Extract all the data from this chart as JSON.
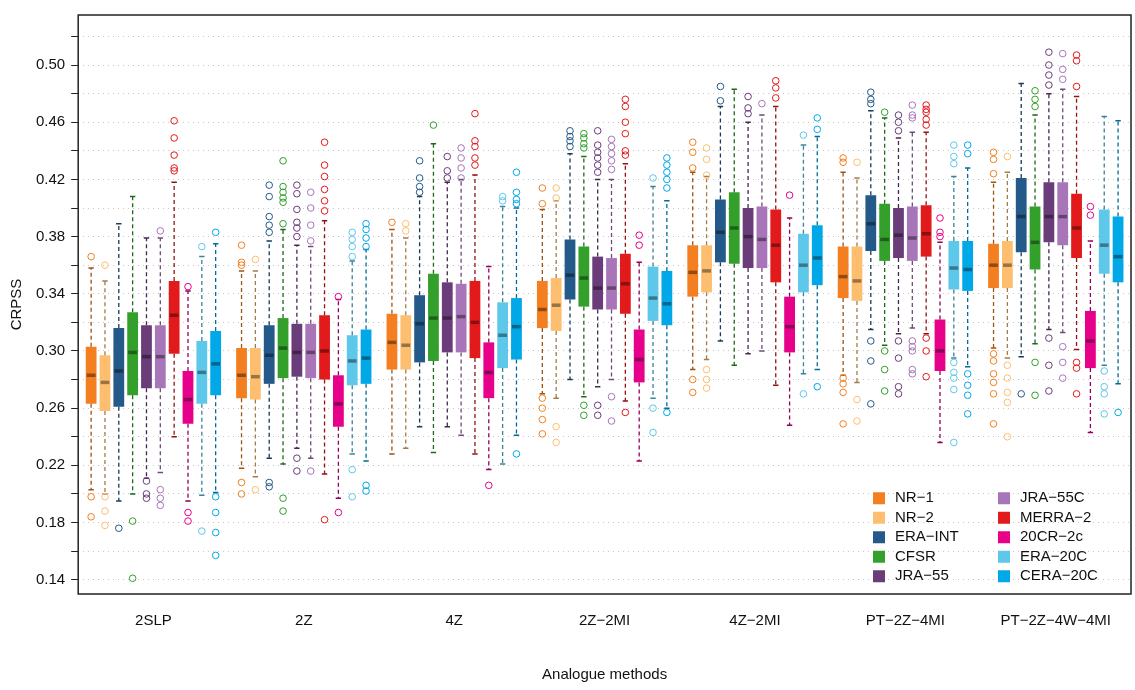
{
  "chart_data": {
    "type": "box",
    "xlabel": "Analogue methods",
    "ylabel": "CRPSS",
    "categories": [
      "2SLP",
      "2Z",
      "4Z",
      "2Z−2MI",
      "4Z−2MI",
      "PT−2Z−4MI",
      "PT−2Z−4W−4MI"
    ],
    "ylim": [
      0.13,
      0.535
    ],
    "yticks": [
      0.14,
      {
        "value": 0.16,
        "label": null
      },
      0.18,
      {
        "value": 0.2,
        "label": null
      },
      0.22,
      {
        "value": 0.24,
        "label": null
      },
      0.26,
      {
        "value": 0.28,
        "label": null
      },
      {
        "value": 0.3,
        "label": "0.30"
      },
      {
        "value": 0.32,
        "label": null
      },
      0.34,
      {
        "value": 0.36,
        "label": null
      },
      0.38,
      {
        "value": 0.4,
        "label": null
      },
      0.42,
      {
        "value": 0.44,
        "label": null
      },
      0.46,
      {
        "value": 0.48,
        "label": null
      },
      {
        "value": 0.5,
        "label": "0.50"
      },
      {
        "value": 0.52,
        "label": null
      }
    ],
    "grid": "y",
    "legend": "bottom right",
    "series": [
      {
        "name": "NR−1",
        "color": "#f47f20",
        "boxes": [
          {
            "low": 0.203,
            "q1": 0.263,
            "median": 0.283,
            "q3": 0.303,
            "high": 0.358,
            "outliers": [
              0.366,
              0.198,
              0.184
            ]
          },
          {
            "low": 0.218,
            "q1": 0.267,
            "median": 0.283,
            "q3": 0.302,
            "high": 0.356,
            "outliers": [
              0.374,
              0.362,
              0.36,
              0.208,
              0.2
            ]
          },
          {
            "low": 0.228,
            "q1": 0.287,
            "median": 0.306,
            "q3": 0.326,
            "high": 0.385,
            "outliers": [
              0.39
            ]
          },
          {
            "low": 0.27,
            "q1": 0.316,
            "median": 0.329,
            "q3": 0.349,
            "high": 0.399,
            "outliers": [
              0.414,
              0.403,
              0.267,
              0.26,
              0.252,
              0.242
            ]
          },
          {
            "low": 0.287,
            "q1": 0.338,
            "median": 0.355,
            "q3": 0.374,
            "high": 0.425,
            "outliers": [
              0.446,
              0.439,
              0.428,
              0.28,
              0.271
            ]
          },
          {
            "low": 0.283,
            "q1": 0.337,
            "median": 0.352,
            "q3": 0.373,
            "high": 0.425,
            "outliers": [
              0.435,
              0.432,
              0.281,
              0.277,
              0.271,
              0.249
            ]
          },
          {
            "low": 0.302,
            "q1": 0.344,
            "median": 0.36,
            "q3": 0.375,
            "high": 0.418,
            "outliers": [
              0.439,
              0.434,
              0.424,
              0.298,
              0.293,
              0.284,
              0.278,
              0.27,
              0.249
            ]
          }
        ]
      },
      {
        "name": "NR−2",
        "color": "#fdbf6f",
        "boxes": [
          {
            "low": 0.2,
            "q1": 0.258,
            "median": 0.278,
            "q3": 0.297,
            "high": 0.349,
            "outliers": [
              0.36,
              0.198,
              0.188,
              0.178
            ]
          },
          {
            "low": 0.212,
            "q1": 0.266,
            "median": 0.282,
            "q3": 0.302,
            "high": 0.356,
            "outliers": [
              0.364,
              0.203
            ]
          },
          {
            "low": 0.232,
            "q1": 0.287,
            "median": 0.304,
            "q3": 0.325,
            "high": 0.379,
            "outliers": [
              0.389,
              0.384
            ]
          },
          {
            "low": 0.267,
            "q1": 0.314,
            "median": 0.332,
            "q3": 0.351,
            "high": 0.405,
            "outliers": [
              0.414,
              0.407,
              0.247,
              0.236
            ]
          },
          {
            "low": 0.294,
            "q1": 0.341,
            "median": 0.356,
            "q3": 0.374,
            "high": 0.422,
            "outliers": [
              0.442,
              0.434,
              0.423,
              0.287,
              0.28,
              0.274
            ]
          },
          {
            "low": 0.278,
            "q1": 0.335,
            "median": 0.349,
            "q3": 0.373,
            "high": 0.421,
            "outliers": [
              0.432,
              0.266,
              0.251
            ]
          },
          {
            "low": 0.295,
            "q1": 0.344,
            "median": 0.36,
            "q3": 0.377,
            "high": 0.425,
            "outliers": [
              0.436,
              0.29,
              0.281,
              0.271,
              0.264,
              0.24
            ]
          }
        ]
      },
      {
        "name": "ERA−INT",
        "color": "#245a8a",
        "boxes": [
          {
            "low": 0.195,
            "q1": 0.261,
            "median": 0.286,
            "q3": 0.316,
            "high": 0.389,
            "outliers": [
              0.176
            ]
          },
          {
            "low": 0.225,
            "q1": 0.277,
            "median": 0.297,
            "q3": 0.318,
            "high": 0.377,
            "outliers": [
              0.416,
              0.408,
              0.394,
              0.388,
              0.383,
              0.208,
              0.205
            ]
          },
          {
            "low": 0.247,
            "q1": 0.292,
            "median": 0.319,
            "q3": 0.339,
            "high": 0.408,
            "outliers": [
              0.433,
              0.421,
              0.415,
              0.411
            ]
          },
          {
            "low": 0.28,
            "q1": 0.336,
            "median": 0.353,
            "q3": 0.378,
            "high": 0.438,
            "outliers": [
              0.454,
              0.45,
              0.447,
              0.443
            ]
          },
          {
            "low": 0.307,
            "q1": 0.362,
            "median": 0.383,
            "q3": 0.406,
            "high": 0.471,
            "outliers": [
              0.485,
              0.475
            ]
          },
          {
            "low": 0.315,
            "q1": 0.37,
            "median": 0.389,
            "q3": 0.409,
            "high": 0.468,
            "outliers": [
              0.481,
              0.476,
              0.473,
              0.307,
              0.293,
              0.263
            ]
          },
          {
            "low": 0.296,
            "q1": 0.369,
            "median": 0.394,
            "q3": 0.421,
            "high": 0.487,
            "outliers": [
              0.27
            ]
          }
        ]
      },
      {
        "name": "CFSR",
        "color": "#33a02c",
        "boxes": [
          {
            "low": 0.2,
            "q1": 0.269,
            "median": 0.299,
            "q3": 0.327,
            "high": 0.408,
            "outliers": [
              0.181,
              0.141
            ]
          },
          {
            "low": 0.221,
            "q1": 0.281,
            "median": 0.302,
            "q3": 0.323,
            "high": 0.385,
            "outliers": [
              0.433,
              0.415,
              0.411,
              0.407,
              0.404,
              0.389,
              0.197,
              0.188
            ]
          },
          {
            "low": 0.229,
            "q1": 0.293,
            "median": 0.323,
            "q3": 0.354,
            "high": 0.445,
            "outliers": [
              0.458
            ]
          },
          {
            "low": 0.268,
            "q1": 0.331,
            "median": 0.351,
            "q3": 0.373,
            "high": 0.436,
            "outliers": [
              0.452,
              0.449,
              0.445,
              0.442,
              0.262,
              0.255
            ]
          },
          {
            "low": 0.29,
            "q1": 0.361,
            "median": 0.386,
            "q3": 0.411,
            "high": 0.483
          },
          {
            "low": 0.304,
            "q1": 0.363,
            "median": 0.378,
            "q3": 0.403,
            "high": 0.463,
            "outliers": [
              0.467,
              0.3,
              0.287,
              0.272
            ]
          },
          {
            "low": 0.305,
            "q1": 0.357,
            "median": 0.376,
            "q3": 0.401,
            "high": 0.465,
            "outliers": [
              0.482,
              0.476,
              0.471,
              0.292,
              0.269
            ]
          }
        ]
      },
      {
        "name": "JRA−55",
        "color": "#6a3d7a",
        "boxes": [
          {
            "low": 0.211,
            "q1": 0.274,
            "median": 0.296,
            "q3": 0.318,
            "high": 0.379,
            "outliers": [
              0.209,
              0.2,
              0.197
            ]
          },
          {
            "low": 0.232,
            "q1": 0.282,
            "median": 0.299,
            "q3": 0.319,
            "high": 0.374,
            "outliers": [
              0.416,
              0.41,
              0.399,
              0.39,
              0.386,
              0.38,
              0.225,
              0.216
            ]
          },
          {
            "low": 0.247,
            "q1": 0.299,
            "median": 0.323,
            "q3": 0.348,
            "high": 0.418,
            "outliers": [
              0.436,
              0.426,
              0.421
            ]
          },
          {
            "low": 0.275,
            "q1": 0.329,
            "median": 0.344,
            "q3": 0.366,
            "high": 0.42,
            "outliers": [
              0.454,
              0.444,
              0.439,
              0.435,
              0.43,
              0.425,
              0.262,
              0.255
            ]
          },
          {
            "low": 0.298,
            "q1": 0.358,
            "median": 0.38,
            "q3": 0.4,
            "high": 0.46,
            "outliers": [
              0.478,
              0.47,
              0.466
            ]
          },
          {
            "low": 0.312,
            "q1": 0.365,
            "median": 0.381,
            "q3": 0.4,
            "high": 0.449,
            "outliers": [
              0.465,
              0.46,
              0.454,
              0.307,
              0.295,
              0.275,
              0.27
            ]
          },
          {
            "low": 0.315,
            "q1": 0.376,
            "median": 0.394,
            "q3": 0.418,
            "high": 0.48,
            "outliers": [
              0.509,
              0.5,
              0.493,
              0.486,
              0.309,
              0.29,
              0.272
            ]
          }
        ]
      },
      {
        "name": "JRA−55C",
        "color": "#a876b8",
        "boxes": [
          {
            "low": 0.215,
            "q1": 0.274,
            "median": 0.296,
            "q3": 0.318,
            "high": 0.379,
            "outliers": [
              0.384,
              0.203,
              0.197,
              0.192
            ]
          },
          {
            "low": 0.225,
            "q1": 0.281,
            "median": 0.299,
            "q3": 0.319,
            "high": 0.373,
            "outliers": [
              0.411,
              0.4,
              0.388,
              0.377,
              0.216
            ]
          },
          {
            "low": 0.241,
            "q1": 0.299,
            "median": 0.324,
            "q3": 0.347,
            "high": 0.42,
            "outliers": [
              0.442,
              0.435,
              0.428,
              0.421
            ]
          },
          {
            "low": 0.28,
            "q1": 0.329,
            "median": 0.344,
            "q3": 0.365,
            "high": 0.42,
            "outliers": [
              0.448,
              0.443,
              0.438,
              0.433,
              0.427,
              0.268,
              0.251
            ]
          },
          {
            "low": 0.3,
            "q1": 0.358,
            "median": 0.378,
            "q3": 0.401,
            "high": 0.465,
            "outliers": [
              0.473
            ]
          },
          {
            "low": 0.316,
            "q1": 0.363,
            "median": 0.379,
            "q3": 0.401,
            "high": 0.453,
            "outliers": [
              0.472,
              0.465,
              0.463,
              0.307,
              0.303,
              0.3,
              0.287,
              0.284
            ]
          },
          {
            "low": 0.313,
            "q1": 0.374,
            "median": 0.394,
            "q3": 0.418,
            "high": 0.483,
            "outliers": [
              0.508,
              0.497,
              0.49,
              0.303,
              0.292,
              0.281
            ]
          }
        ]
      },
      {
        "name": "MERRA−2",
        "color": "#e31a1c",
        "boxes": [
          {
            "low": 0.24,
            "q1": 0.298,
            "median": 0.325,
            "q3": 0.349,
            "high": 0.418,
            "outliers": [
              0.461,
              0.449,
              0.437,
              0.428,
              0.426
            ]
          },
          {
            "low": 0.214,
            "q1": 0.28,
            "median": 0.3,
            "q3": 0.325,
            "high": 0.391,
            "outliers": [
              0.446,
              0.43,
              0.422,
              0.413,
              0.405,
              0.398,
              0.182
            ]
          },
          {
            "low": 0.228,
            "q1": 0.295,
            "median": 0.32,
            "q3": 0.349,
            "high": 0.423,
            "outliers": [
              0.466,
              0.447,
              0.443,
              0.435,
              0.43
            ]
          },
          {
            "low": 0.265,
            "q1": 0.326,
            "median": 0.347,
            "q3": 0.368,
            "high": 0.431,
            "outliers": [
              0.476,
              0.471,
              0.46,
              0.452,
              0.44,
              0.437,
              0.257
            ]
          },
          {
            "low": 0.276,
            "q1": 0.348,
            "median": 0.374,
            "q3": 0.399,
            "high": 0.471,
            "outliers": [
              0.489,
              0.484,
              0.477
            ]
          },
          {
            "low": 0.312,
            "q1": 0.366,
            "median": 0.382,
            "q3": 0.402,
            "high": 0.453,
            "outliers": [
              0.472,
              0.469,
              0.467,
              0.462,
              0.458,
              0.309,
              0.3,
              0.282
            ]
          },
          {
            "low": 0.301,
            "q1": 0.365,
            "median": 0.386,
            "q3": 0.41,
            "high": 0.478,
            "outliers": [
              0.507,
              0.503,
              0.485,
              0.292,
              0.288,
              0.27
            ]
          }
        ]
      },
      {
        "name": "20CR−2c",
        "color": "#e7008a",
        "boxes": [
          {
            "low": 0.195,
            "q1": 0.249,
            "median": 0.266,
            "q3": 0.286,
            "high": 0.342,
            "outliers": [
              0.345,
              0.187,
              0.181
            ]
          },
          {
            "low": 0.197,
            "q1": 0.247,
            "median": 0.263,
            "q3": 0.283,
            "high": 0.336,
            "outliers": [
              0.338,
              0.187
            ]
          },
          {
            "low": 0.217,
            "q1": 0.267,
            "median": 0.285,
            "q3": 0.306,
            "high": 0.359,
            "outliers": [
              0.206
            ]
          },
          {
            "low": 0.223,
            "q1": 0.278,
            "median": 0.294,
            "q3": 0.315,
            "high": 0.362,
            "outliers": [
              0.381,
              0.374
            ]
          },
          {
            "low": 0.248,
            "q1": 0.299,
            "median": 0.317,
            "q3": 0.338,
            "high": 0.393,
            "outliers": [
              0.409
            ]
          },
          {
            "low": 0.236,
            "q1": 0.286,
            "median": 0.3,
            "q3": 0.322,
            "high": 0.376,
            "outliers": [
              0.393,
              0.383,
              0.38
            ]
          },
          {
            "low": 0.243,
            "q1": 0.288,
            "median": 0.307,
            "q3": 0.328,
            "high": 0.377,
            "outliers": [
              0.401,
              0.395
            ]
          }
        ]
      },
      {
        "name": "ERA−20C",
        "color": "#5ec8ea",
        "boxes": [
          {
            "low": 0.199,
            "q1": 0.263,
            "median": 0.285,
            "q3": 0.307,
            "high": 0.366,
            "outliers": [
              0.373,
              0.174
            ]
          },
          {
            "low": 0.228,
            "q1": 0.276,
            "median": 0.293,
            "q3": 0.311,
            "high": 0.363,
            "outliers": [
              0.383,
              0.378,
              0.373,
              0.366,
              0.217,
              0.198
            ]
          },
          {
            "low": 0.221,
            "q1": 0.288,
            "median": 0.311,
            "q3": 0.334,
            "high": 0.401,
            "outliers": [
              0.408,
              0.405
            ]
          },
          {
            "low": 0.267,
            "q1": 0.321,
            "median": 0.337,
            "q3": 0.359,
            "high": 0.415,
            "outliers": [
              0.421,
              0.26,
              0.243
            ]
          },
          {
            "low": 0.284,
            "q1": 0.341,
            "median": 0.36,
            "q3": 0.382,
            "high": 0.444,
            "outliers": [
              0.451,
              0.27
            ]
          },
          {
            "low": 0.295,
            "q1": 0.343,
            "median": 0.358,
            "q3": 0.377,
            "high": 0.422,
            "outliers": [
              0.444,
              0.436,
              0.431,
              0.292,
              0.285,
              0.281,
              0.273,
              0.236
            ]
          },
          {
            "low": 0.29,
            "q1": 0.354,
            "median": 0.374,
            "q3": 0.399,
            "high": 0.464,
            "outliers": [
              0.286,
              0.275,
              0.27,
              0.256
            ]
          }
        ]
      },
      {
        "name": "CERA−20C",
        "color": "#00a8e8",
        "boxes": [
          {
            "low": 0.201,
            "q1": 0.269,
            "median": 0.291,
            "q3": 0.314,
            "high": 0.375,
            "outliers": [
              0.383,
              0.198,
              0.187,
              0.173,
              0.157
            ]
          },
          {
            "low": 0.223,
            "q1": 0.277,
            "median": 0.295,
            "q3": 0.315,
            "high": 0.371,
            "outliers": [
              0.389,
              0.385,
              0.379,
              0.373,
              0.206,
              0.202
            ]
          },
          {
            "low": 0.241,
            "q1": 0.294,
            "median": 0.317,
            "q3": 0.337,
            "high": 0.4,
            "outliers": [
              0.425,
              0.411,
              0.406,
              0.403,
              0.228
            ]
          },
          {
            "low": 0.26,
            "q1": 0.318,
            "median": 0.333,
            "q3": 0.356,
            "high": 0.405,
            "outliers": [
              0.435,
              0.43,
              0.425,
              0.42,
              0.414,
              0.257
            ]
          },
          {
            "low": 0.287,
            "q1": 0.346,
            "median": 0.365,
            "q3": 0.388,
            "high": 0.45,
            "outliers": [
              0.463,
              0.455,
              0.275
            ]
          },
          {
            "low": 0.289,
            "q1": 0.342,
            "median": 0.357,
            "q3": 0.377,
            "high": 0.428,
            "outliers": [
              0.444,
              0.438,
              0.284,
              0.276,
              0.269,
              0.256
            ]
          },
          {
            "low": 0.277,
            "q1": 0.348,
            "median": 0.366,
            "q3": 0.394,
            "high": 0.461,
            "outliers": [
              0.257
            ]
          }
        ]
      }
    ]
  }
}
